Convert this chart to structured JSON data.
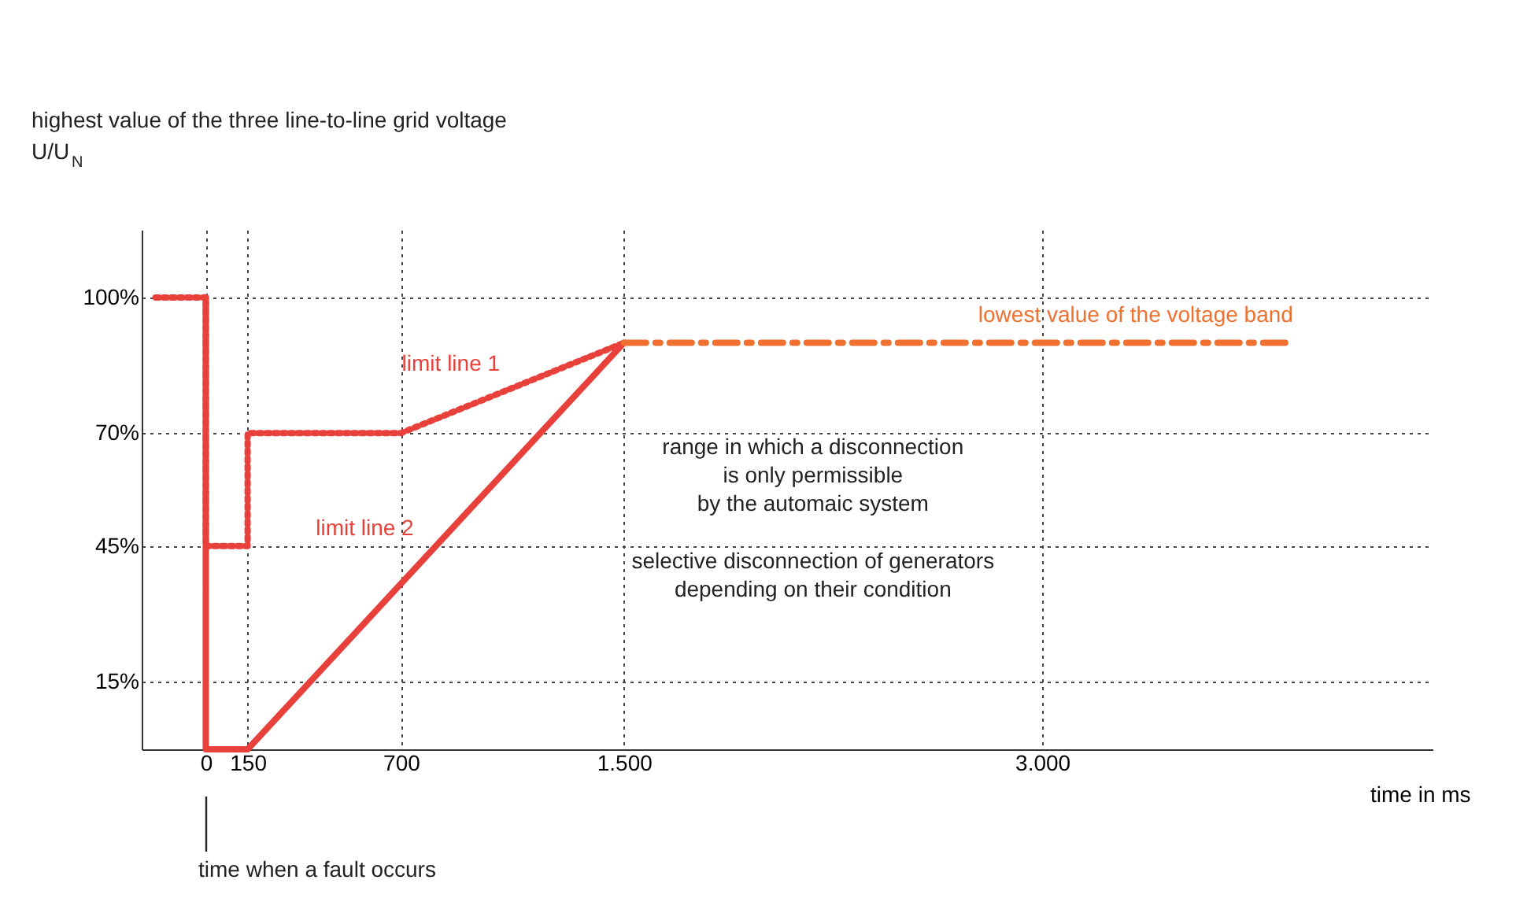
{
  "chart_data": {
    "type": "line",
    "ylabel": "highest value of the three line-to-line grid voltage\nU/U$_{N}$",
    "xlabel": "time in ms",
    "xlim": [
      -230,
      4400
    ],
    "ylim": [
      0,
      115
    ],
    "xticks": [
      {
        "value": 0,
        "label": "0"
      },
      {
        "value": 150,
        "label": "150"
      },
      {
        "value": 700,
        "label": "700"
      },
      {
        "value": 1500,
        "label": "1.500"
      },
      {
        "value": 3000,
        "label": "3.000"
      }
    ],
    "yticks": [
      {
        "value": 15,
        "label": "15%"
      },
      {
        "value": 45,
        "label": "45%"
      },
      {
        "value": 70,
        "label": "70%"
      },
      {
        "value": 100,
        "label": "100%"
      }
    ],
    "grid": true,
    "series": [
      {
        "name": "limit line 1",
        "color": "#e8403a",
        "line_style": "dotted",
        "x": [
          -180,
          0,
          0,
          150,
          150,
          700,
          1500
        ],
        "values": [
          100,
          100,
          45,
          45,
          70,
          70,
          90
        ]
      },
      {
        "name": "limit line 2",
        "color": "#e8403a",
        "line_style": "solid",
        "x": [
          0,
          0,
          150,
          1500
        ],
        "values": [
          100,
          0,
          0,
          90
        ]
      },
      {
        "name": "lowest value of the voltage band",
        "color": "#f07030",
        "line_style": "dashed",
        "x": [
          1500,
          3900
        ],
        "values": [
          90,
          90
        ]
      }
    ],
    "annotations": [
      "range in which a disconnection\nis only permissible\nby the automaic system",
      "selective disconnection of generators\ndepending on their condition",
      "time when a fault occurs"
    ]
  }
}
